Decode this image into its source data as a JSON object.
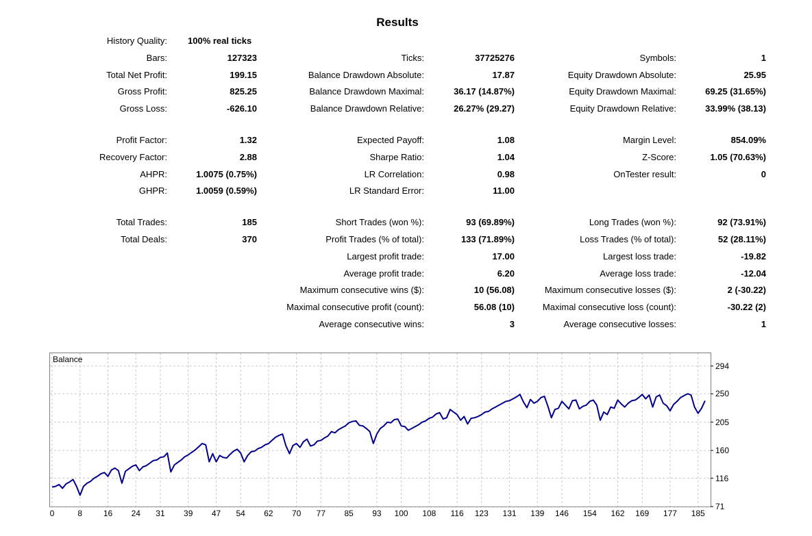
{
  "results": {
    "title": "Results",
    "history_quality": {
      "label": "History Quality:",
      "value": "100% real ticks"
    },
    "col1": [
      {
        "label": "Bars:",
        "value": "127323"
      },
      {
        "label": "Total Net Profit:",
        "value": "199.15"
      },
      {
        "label": "Gross Profit:",
        "value": "825.25"
      },
      {
        "label": "Gross Loss:",
        "value": "-626.10"
      },
      {
        "label": "Profit Factor:",
        "value": "1.32"
      },
      {
        "label": "Recovery Factor:",
        "value": "2.88"
      },
      {
        "label": "AHPR:",
        "value": "1.0075 (0.75%)"
      },
      {
        "label": "GHPR:",
        "value": "1.0059 (0.59%)"
      },
      {
        "label": "Total Trades:",
        "value": "185"
      },
      {
        "label": "Total Deals:",
        "value": "370"
      }
    ],
    "col2": [
      {
        "label": "Ticks:",
        "value": "37725276"
      },
      {
        "label": "Balance Drawdown Absolute:",
        "value": "17.87"
      },
      {
        "label": "Balance Drawdown Maximal:",
        "value": "36.17 (14.87%)"
      },
      {
        "label": "Balance Drawdown Relative:",
        "value": "26.27% (29.27)"
      },
      {
        "label": "Expected Payoff:",
        "value": "1.08"
      },
      {
        "label": "Sharpe Ratio:",
        "value": "1.04"
      },
      {
        "label": "LR Correlation:",
        "value": "0.98"
      },
      {
        "label": "LR Standard Error:",
        "value": "11.00"
      },
      {
        "label": "Short Trades (won %):",
        "value": "93 (69.89%)"
      },
      {
        "label": "Profit Trades (% of total):",
        "value": "133 (71.89%)"
      },
      {
        "label": "Largest profit trade:",
        "value": "17.00"
      },
      {
        "label": "Average profit trade:",
        "value": "6.20"
      },
      {
        "label": "Maximum consecutive wins ($):",
        "value": "10 (56.08)"
      },
      {
        "label": "Maximal consecutive profit (count):",
        "value": "56.08 (10)"
      },
      {
        "label": "Average consecutive wins:",
        "value": "3"
      }
    ],
    "col3": [
      {
        "label": "Symbols:",
        "value": "1"
      },
      {
        "label": "Equity Drawdown Absolute:",
        "value": "25.95"
      },
      {
        "label": "Equity Drawdown Maximal:",
        "value": "69.25 (31.65%)"
      },
      {
        "label": "Equity Drawdown Relative:",
        "value": "33.99% (38.13)"
      },
      {
        "label": "Margin Level:",
        "value": "854.09%"
      },
      {
        "label": "Z-Score:",
        "value": "1.05 (70.63%)"
      },
      {
        "label": "OnTester result:",
        "value": "0"
      },
      {
        "label": "Long Trades (won %):",
        "value": "92 (73.91%)"
      },
      {
        "label": "Loss Trades (% of total):",
        "value": "52 (28.11%)"
      },
      {
        "label": "Largest loss trade:",
        "value": "-19.82"
      },
      {
        "label": "Average loss trade:",
        "value": "-12.04"
      },
      {
        "label": "Maximum consecutive losses ($):",
        "value": "2 (-30.22)"
      },
      {
        "label": "Maximal consecutive loss (count):",
        "value": "-30.22 (2)"
      },
      {
        "label": "Average consecutive losses:",
        "value": "1"
      }
    ]
  },
  "colors": {
    "line": "#00008b",
    "grid": "#c8c8c8",
    "border": "#7f7f7f"
  },
  "chart_data": {
    "type": "line",
    "label": "Balance",
    "xlim": [
      0,
      188
    ],
    "ylim": [
      71,
      310
    ],
    "x_ticks": [
      0,
      8,
      16,
      24,
      31,
      39,
      47,
      54,
      62,
      70,
      77,
      85,
      93,
      100,
      108,
      116,
      123,
      131,
      139,
      146,
      154,
      162,
      169,
      177,
      185
    ],
    "y_ticks": [
      71,
      116,
      160,
      205,
      250,
      294
    ],
    "grid": true,
    "series": [
      {
        "x": [
          0,
          1,
          2,
          3,
          4,
          5,
          6,
          7,
          8,
          9,
          10,
          11,
          12,
          13,
          14,
          15,
          16,
          17,
          18,
          19,
          20,
          21,
          22,
          23,
          24,
          25,
          26,
          27,
          28,
          29,
          30,
          31,
          32,
          33,
          34,
          35,
          36,
          37,
          38,
          39,
          40,
          41,
          42,
          43,
          44,
          45,
          46,
          47,
          48,
          49,
          50,
          51,
          52,
          53,
          54,
          55,
          56,
          57,
          58,
          59,
          60,
          61,
          62,
          63,
          64,
          65,
          66,
          67,
          68,
          69,
          70,
          71,
          72,
          73,
          74,
          75,
          76,
          77,
          78,
          79,
          80,
          81,
          82,
          83,
          84,
          85,
          86,
          87,
          88,
          89,
          90,
          91,
          92,
          93,
          94,
          95,
          96,
          97,
          98,
          99,
          100,
          101,
          102,
          103,
          104,
          105,
          106,
          107,
          108,
          109,
          110,
          111,
          112,
          113,
          114,
          115,
          116,
          117,
          118,
          119,
          120,
          121,
          122,
          123,
          124,
          125,
          126,
          127,
          128,
          129,
          130,
          131,
          132,
          133,
          134,
          135,
          136,
          137,
          138,
          139,
          140,
          141,
          142,
          143,
          144,
          145,
          146,
          147,
          148,
          149,
          150,
          151,
          152,
          153,
          154,
          155,
          156,
          157,
          158,
          159,
          160,
          161,
          162,
          163,
          164,
          165,
          166,
          167,
          168,
          169,
          170,
          171,
          172,
          173,
          174,
          175,
          176,
          177,
          178,
          179,
          180,
          181,
          182,
          183,
          184,
          185,
          186,
          187
        ],
        "values": [
          102,
          103,
          106,
          100,
          107,
          110,
          114,
          103,
          89,
          103,
          108,
          111,
          116,
          119,
          123,
          125,
          119,
          129,
          132,
          128,
          108,
          127,
          131,
          135,
          137,
          128,
          134,
          136,
          140,
          144,
          145,
          149,
          150,
          156,
          126,
          137,
          141,
          145,
          150,
          153,
          157,
          161,
          166,
          171,
          169,
          142,
          155,
          142,
          152,
          149,
          148,
          154,
          159,
          162,
          156,
          142,
          152,
          158,
          159,
          163,
          165,
          169,
          171,
          176,
          181,
          184,
          186,
          167,
          155,
          168,
          171,
          165,
          174,
          178,
          167,
          169,
          175,
          176,
          180,
          183,
          190,
          188,
          193,
          196,
          199,
          204,
          206,
          207,
          200,
          199,
          195,
          190,
          171,
          186,
          195,
          199,
          205,
          204,
          209,
          210,
          199,
          198,
          192,
          195,
          198,
          201,
          205,
          207,
          211,
          213,
          218,
          220,
          210,
          212,
          225,
          221,
          217,
          208,
          214,
          202,
          211,
          212,
          214,
          217,
          221,
          222,
          226,
          229,
          232,
          235,
          238,
          239,
          242,
          245,
          249,
          237,
          228,
          241,
          235,
          238,
          244,
          246,
          230,
          212,
          225,
          227,
          238,
          232,
          226,
          239,
          240,
          226,
          230,
          232,
          238,
          240,
          232,
          208,
          221,
          217,
          229,
          227,
          240,
          234,
          229,
          235,
          239,
          240,
          244,
          249,
          242,
          248,
          229,
          245,
          248,
          235,
          231,
          223,
          233,
          238,
          244,
          247,
          250,
          248,
          229,
          219,
          227,
          239
        ]
      }
    ]
  }
}
